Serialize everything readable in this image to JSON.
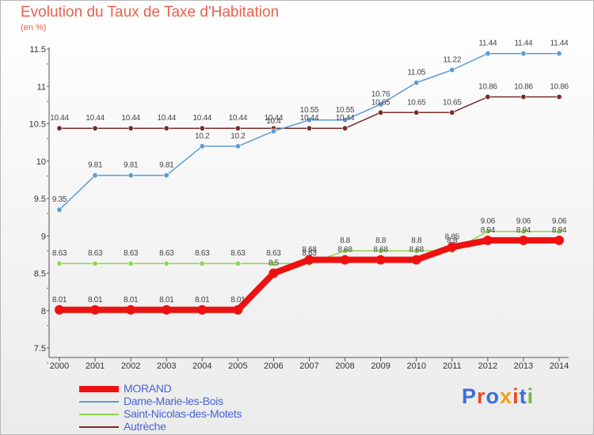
{
  "header": {
    "title": "Evolution du Taux de Taxe d'Habitation",
    "unit": "(en %)"
  },
  "logo": {
    "text": "Proxiti",
    "letter_colors": [
      "#3b6fd6",
      "#e54a2e",
      "#3b6fd6",
      "#f0a020",
      "#e54a2e",
      "#3b6fd6",
      "#7ab648"
    ]
  },
  "chart_data": {
    "type": "line",
    "title": "Evolution du Taux de Taxe d'Habitation",
    "ylabel": "(en %)",
    "xlabel": "",
    "x": [
      "2000",
      "2001",
      "2002",
      "2003",
      "2004",
      "2005",
      "2006",
      "2007",
      "2008",
      "2009",
      "2010",
      "2011",
      "2012",
      "2013",
      "2014"
    ],
    "ylim": [
      7.5,
      11.5
    ],
    "yticks": [
      7.5,
      8,
      8.5,
      9,
      9.5,
      10,
      10.5,
      11,
      11.5
    ],
    "grid": false,
    "legend_position": "bottom-left",
    "series": [
      {
        "name": "MORAND",
        "color": "#ee1111",
        "values": [
          8.01,
          8.01,
          8.01,
          8.01,
          8.01,
          8.01,
          8.5,
          8.68,
          8.68,
          8.68,
          8.68,
          8.85,
          8.94,
          8.94,
          8.94
        ],
        "labels": [
          "8.01",
          "8.01",
          "8.01",
          "8.01",
          "8.01",
          "8.01",
          "8.5",
          "8.68",
          "8.68",
          "8.68",
          "8.68",
          "8.85",
          "8.94",
          "8.94",
          "8.94"
        ]
      },
      {
        "name": "Dame-Marie-les-Bois",
        "color": "#5b9bd5",
        "values": [
          9.35,
          9.81,
          9.81,
          9.81,
          10.2,
          10.2,
          10.4,
          10.55,
          10.55,
          10.76,
          11.05,
          11.22,
          11.44,
          11.44,
          11.44
        ],
        "labels": [
          "9.35",
          "9.81",
          "9.81",
          "9.81",
          "10.2",
          "10.2",
          "10.4",
          "10.55",
          "10.55",
          "10.76",
          "11.05",
          "11.22",
          "11.44",
          "11.44",
          "11.44"
        ]
      },
      {
        "name": "Saint-Nicolas-des-Motets",
        "color": "#8ed64a",
        "values": [
          8.63,
          8.63,
          8.63,
          8.63,
          8.63,
          8.63,
          8.63,
          8.63,
          8.8,
          8.8,
          8.8,
          8.8,
          9.06,
          9.06,
          9.06
        ],
        "labels": [
          "8.63",
          "8.63",
          "8.63",
          "8.63",
          "8.63",
          "8.63",
          "8.63",
          "8.63",
          "8.8",
          "8.8",
          "8.8",
          "8.8",
          "9.06",
          "9.06",
          "9.06"
        ]
      },
      {
        "name": "Autrèche",
        "color": "#7a2a2a",
        "values": [
          10.44,
          10.44,
          10.44,
          10.44,
          10.44,
          10.44,
          10.44,
          10.44,
          10.44,
          10.65,
          10.65,
          10.65,
          10.86,
          10.86,
          10.86
        ],
        "labels": [
          "10.44",
          "10.44",
          "10.44",
          "10.44",
          "10.44",
          "10.44",
          "10.44",
          "10.44",
          "10.44",
          "10.65",
          "10.65",
          "10.65",
          "10.86",
          "10.86",
          "10.86"
        ]
      }
    ]
  }
}
